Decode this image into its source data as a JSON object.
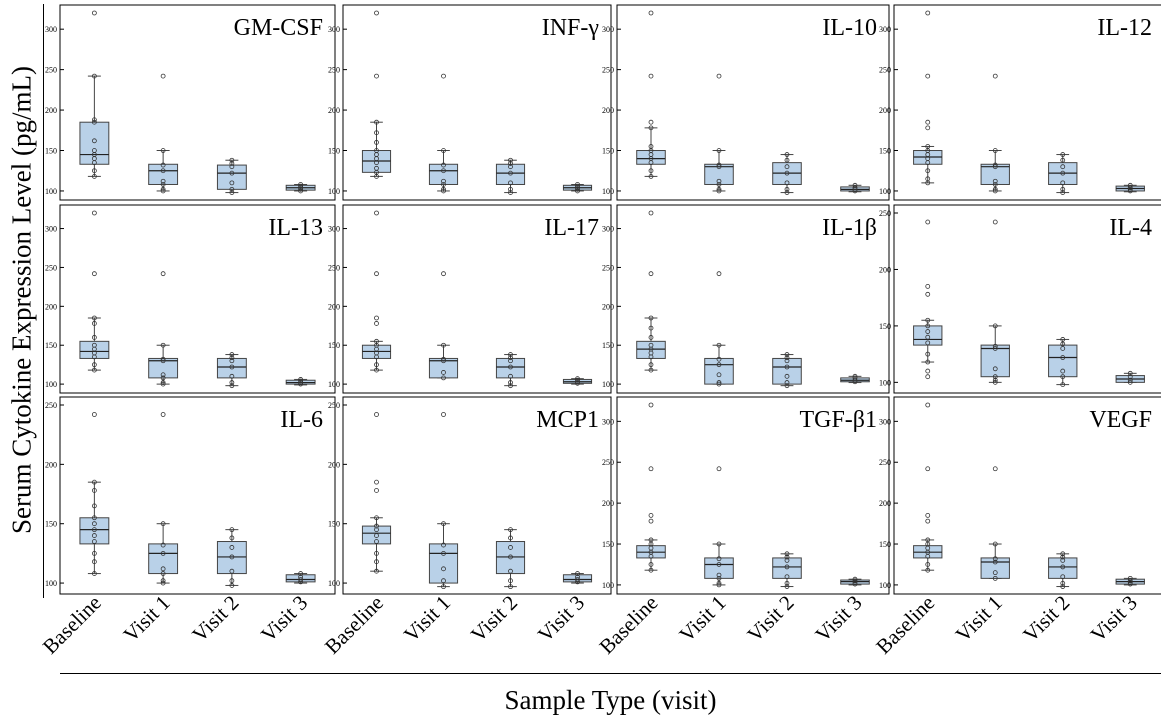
{
  "figure": {
    "y_axis_label": "Serum Cytokine Expression Level (pg/mL)",
    "x_axis_label": "Sample Type (visit)"
  },
  "chart_data": [
    {
      "type": "box",
      "title": "GM-CSF",
      "categories": [
        "Baseline",
        "Visit 1",
        "Visit 2",
        "Visit 3"
      ],
      "ylim": [
        95,
        320
      ],
      "yticks": [
        100,
        150,
        200,
        250,
        300
      ],
      "boxes": [
        {
          "q1": 133,
          "median": 145,
          "q3": 185,
          "whisker_low": 118,
          "whisker_high": 242,
          "points": [
            320,
            242,
            188,
            185,
            162,
            150,
            145,
            140,
            135,
            125,
            118
          ]
        },
        {
          "q1": 108,
          "median": 125,
          "q3": 133,
          "whisker_low": 100,
          "whisker_high": 150,
          "points": [
            242,
            150,
            132,
            125,
            112,
            108,
            102,
            100
          ]
        },
        {
          "q1": 102,
          "median": 122,
          "q3": 132,
          "whisker_low": 98,
          "whisker_high": 138,
          "points": [
            138,
            134,
            130,
            122,
            110,
            102,
            98
          ]
        },
        {
          "q1": 101,
          "median": 104,
          "q3": 107,
          "whisker_low": 100,
          "whisker_high": 108,
          "points": [
            108,
            106,
            104,
            102,
            100
          ]
        }
      ]
    },
    {
      "type": "box",
      "title": "INF-γ",
      "categories": [
        "Baseline",
        "Visit 1",
        "Visit 2",
        "Visit 3"
      ],
      "ylim": [
        95,
        320
      ],
      "yticks": [
        100,
        150,
        200,
        250,
        300
      ],
      "boxes": [
        {
          "q1": 123,
          "median": 137,
          "q3": 150,
          "whisker_low": 118,
          "whisker_high": 185,
          "points": [
            320,
            242,
            185,
            172,
            160,
            150,
            145,
            140,
            135,
            128,
            123,
            118
          ]
        },
        {
          "q1": 108,
          "median": 125,
          "q3": 133,
          "whisker_low": 100,
          "whisker_high": 150,
          "points": [
            242,
            150,
            132,
            125,
            112,
            108,
            102,
            100
          ]
        },
        {
          "q1": 108,
          "median": 122,
          "q3": 133,
          "whisker_low": 98,
          "whisker_high": 138,
          "points": [
            138,
            134,
            130,
            122,
            110,
            102,
            98
          ]
        },
        {
          "q1": 101,
          "median": 104,
          "q3": 107,
          "whisker_low": 100,
          "whisker_high": 108,
          "points": [
            108,
            106,
            104,
            102,
            100
          ]
        }
      ]
    },
    {
      "type": "box",
      "title": "IL-10",
      "categories": [
        "Baseline",
        "Visit 1",
        "Visit 2",
        "Visit 3"
      ],
      "ylim": [
        95,
        320
      ],
      "yticks": [
        100,
        150,
        200,
        250,
        300
      ],
      "boxes": [
        {
          "q1": 133,
          "median": 140,
          "q3": 150,
          "whisker_low": 118,
          "whisker_high": 178,
          "points": [
            320,
            242,
            185,
            178,
            155,
            150,
            145,
            140,
            135,
            125,
            118
          ]
        },
        {
          "q1": 108,
          "median": 130,
          "q3": 133,
          "whisker_low": 100,
          "whisker_high": 150,
          "points": [
            242,
            150,
            132,
            130,
            112,
            108,
            102,
            100
          ]
        },
        {
          "q1": 108,
          "median": 122,
          "q3": 135,
          "whisker_low": 98,
          "whisker_high": 145,
          "points": [
            145,
            138,
            130,
            122,
            110,
            102,
            98
          ]
        },
        {
          "q1": 100,
          "median": 102,
          "q3": 105,
          "whisker_low": 99,
          "whisker_high": 107,
          "points": [
            107,
            104,
            102,
            100
          ]
        }
      ]
    },
    {
      "type": "box",
      "title": "IL-12",
      "categories": [
        "Baseline",
        "Visit 1",
        "Visit 2",
        "Visit 3"
      ],
      "ylim": [
        95,
        320
      ],
      "yticks": [
        100,
        150,
        200,
        250,
        300
      ],
      "boxes": [
        {
          "q1": 133,
          "median": 142,
          "q3": 150,
          "whisker_low": 110,
          "whisker_high": 155,
          "points": [
            320,
            242,
            185,
            178,
            155,
            150,
            145,
            140,
            135,
            125,
            115,
            110
          ]
        },
        {
          "q1": 108,
          "median": 130,
          "q3": 133,
          "whisker_low": 100,
          "whisker_high": 150,
          "points": [
            242,
            150,
            132,
            130,
            112,
            108,
            102,
            100
          ]
        },
        {
          "q1": 108,
          "median": 122,
          "q3": 135,
          "whisker_low": 98,
          "whisker_high": 145,
          "points": [
            145,
            138,
            130,
            122,
            110,
            102,
            98
          ]
        },
        {
          "q1": 100,
          "median": 103,
          "q3": 106,
          "whisker_low": 99,
          "whisker_high": 107,
          "points": [
            107,
            104,
            102,
            100
          ]
        }
      ]
    },
    {
      "type": "box",
      "title": "IL-13",
      "categories": [
        "Baseline",
        "Visit 1",
        "Visit 2",
        "Visit 3"
      ],
      "ylim": [
        95,
        320
      ],
      "yticks": [
        100,
        150,
        200,
        250,
        300
      ],
      "boxes": [
        {
          "q1": 133,
          "median": 142,
          "q3": 155,
          "whisker_low": 118,
          "whisker_high": 185,
          "points": [
            320,
            242,
            185,
            178,
            160,
            150,
            145,
            140,
            135,
            125,
            118
          ]
        },
        {
          "q1": 108,
          "median": 130,
          "q3": 133,
          "whisker_low": 100,
          "whisker_high": 150,
          "points": [
            242,
            150,
            132,
            130,
            112,
            108,
            102,
            100
          ]
        },
        {
          "q1": 108,
          "median": 122,
          "q3": 133,
          "whisker_low": 98,
          "whisker_high": 138,
          "points": [
            138,
            134,
            130,
            122,
            110,
            102,
            98
          ]
        },
        {
          "q1": 100,
          "median": 102,
          "q3": 105,
          "whisker_low": 99,
          "whisker_high": 106,
          "points": [
            106,
            104,
            102,
            100
          ]
        }
      ]
    },
    {
      "type": "box",
      "title": "IL-17",
      "categories": [
        "Baseline",
        "Visit 1",
        "Visit 2",
        "Visit 3"
      ],
      "ylim": [
        95,
        320
      ],
      "yticks": [
        100,
        150,
        200,
        250,
        300
      ],
      "boxes": [
        {
          "q1": 133,
          "median": 142,
          "q3": 150,
          "whisker_low": 118,
          "whisker_high": 155,
          "points": [
            320,
            242,
            185,
            178,
            155,
            150,
            145,
            140,
            135,
            125,
            118
          ]
        },
        {
          "q1": 108,
          "median": 130,
          "q3": 133,
          "whisker_low": 108,
          "whisker_high": 150,
          "points": [
            242,
            150,
            132,
            130,
            115,
            108
          ]
        },
        {
          "q1": 108,
          "median": 122,
          "q3": 133,
          "whisker_low": 98,
          "whisker_high": 138,
          "points": [
            138,
            134,
            130,
            122,
            110,
            102,
            98
          ]
        },
        {
          "q1": 101,
          "median": 103,
          "q3": 106,
          "whisker_low": 100,
          "whisker_high": 107,
          "points": [
            107,
            105,
            103,
            101
          ]
        }
      ]
    },
    {
      "type": "box",
      "title": "IL-1β",
      "categories": [
        "Baseline",
        "Visit 1",
        "Visit 2",
        "Visit 3"
      ],
      "ylim": [
        95,
        320
      ],
      "yticks": [
        100,
        150,
        200,
        250,
        300
      ],
      "boxes": [
        {
          "q1": 133,
          "median": 145,
          "q3": 155,
          "whisker_low": 118,
          "whisker_high": 185,
          "points": [
            320,
            242,
            185,
            172,
            160,
            150,
            145,
            140,
            135,
            125,
            118
          ]
        },
        {
          "q1": 100,
          "median": 125,
          "q3": 133,
          "whisker_low": 100,
          "whisker_high": 150,
          "points": [
            242,
            150,
            132,
            125,
            112,
            102,
            100
          ]
        },
        {
          "q1": 100,
          "median": 122,
          "q3": 133,
          "whisker_low": 98,
          "whisker_high": 138,
          "points": [
            138,
            134,
            130,
            122,
            110,
            102,
            98
          ]
        },
        {
          "q1": 103,
          "median": 105,
          "q3": 108,
          "whisker_low": 102,
          "whisker_high": 110,
          "points": [
            110,
            108,
            105,
            103
          ]
        }
      ]
    },
    {
      "type": "box",
      "title": "IL-4",
      "categories": [
        "Baseline",
        "Visit 1",
        "Visit 2",
        "Visit 3"
      ],
      "ylim": [
        95,
        250
      ],
      "yticks": [
        100,
        150,
        200,
        250
      ],
      "boxes": [
        {
          "q1": 133,
          "median": 138,
          "q3": 150,
          "whisker_low": 118,
          "whisker_high": 155,
          "points": [
            242,
            185,
            178,
            155,
            150,
            145,
            140,
            135,
            125,
            118,
            110,
            105
          ]
        },
        {
          "q1": 105,
          "median": 130,
          "q3": 133,
          "whisker_low": 100,
          "whisker_high": 150,
          "points": [
            242,
            150,
            132,
            130,
            112,
            105,
            102,
            100
          ]
        },
        {
          "q1": 105,
          "median": 122,
          "q3": 133,
          "whisker_low": 98,
          "whisker_high": 138,
          "points": [
            138,
            134,
            130,
            122,
            110,
            105,
            98
          ]
        },
        {
          "q1": 100,
          "median": 103,
          "q3": 106,
          "whisker_low": 100,
          "whisker_high": 108,
          "points": [
            108,
            105,
            102,
            100
          ]
        }
      ]
    },
    {
      "type": "box",
      "title": "IL-6",
      "categories": [
        "Baseline",
        "Visit 1",
        "Visit 2",
        "Visit 3"
      ],
      "ylim": [
        95,
        250
      ],
      "yticks": [
        100,
        150,
        200,
        250
      ],
      "boxes": [
        {
          "q1": 133,
          "median": 145,
          "q3": 155,
          "whisker_low": 108,
          "whisker_high": 185,
          "points": [
            242,
            185,
            178,
            165,
            155,
            150,
            145,
            140,
            135,
            125,
            118,
            108
          ]
        },
        {
          "q1": 108,
          "median": 125,
          "q3": 133,
          "whisker_low": 100,
          "whisker_high": 150,
          "points": [
            242,
            150,
            132,
            125,
            112,
            108,
            102,
            100
          ]
        },
        {
          "q1": 108,
          "median": 122,
          "q3": 135,
          "whisker_low": 98,
          "whisker_high": 145,
          "points": [
            145,
            138,
            130,
            122,
            110,
            102,
            98
          ]
        },
        {
          "q1": 101,
          "median": 103,
          "q3": 107,
          "whisker_low": 100,
          "whisker_high": 108,
          "points": [
            108,
            105,
            103,
            101
          ]
        }
      ]
    },
    {
      "type": "box",
      "title": "MCP1",
      "categories": [
        "Baseline",
        "Visit 1",
        "Visit 2",
        "Visit 3"
      ],
      "ylim": [
        95,
        250
      ],
      "yticks": [
        100,
        150,
        200,
        250
      ],
      "boxes": [
        {
          "q1": 133,
          "median": 142,
          "q3": 148,
          "whisker_low": 110,
          "whisker_high": 155,
          "points": [
            242,
            185,
            178,
            155,
            148,
            145,
            140,
            135,
            125,
            118,
            110
          ]
        },
        {
          "q1": 100,
          "median": 125,
          "q3": 133,
          "whisker_low": 97,
          "whisker_high": 150,
          "points": [
            242,
            150,
            132,
            125,
            112,
            102,
            97
          ]
        },
        {
          "q1": 108,
          "median": 122,
          "q3": 135,
          "whisker_low": 97,
          "whisker_high": 145,
          "points": [
            145,
            138,
            130,
            122,
            110,
            102,
            97
          ]
        },
        {
          "q1": 101,
          "median": 103,
          "q3": 107,
          "whisker_low": 100,
          "whisker_high": 108,
          "points": [
            108,
            105,
            103,
            101
          ]
        }
      ]
    },
    {
      "type": "box",
      "title": "TGF-β1",
      "categories": [
        "Baseline",
        "Visit 1",
        "Visit 2",
        "Visit 3"
      ],
      "ylim": [
        95,
        320
      ],
      "yticks": [
        100,
        150,
        200,
        250,
        300
      ],
      "boxes": [
        {
          "q1": 133,
          "median": 140,
          "q3": 148,
          "whisker_low": 118,
          "whisker_high": 155,
          "points": [
            320,
            242,
            185,
            178,
            155,
            150,
            145,
            140,
            135,
            125,
            118
          ]
        },
        {
          "q1": 108,
          "median": 125,
          "q3": 133,
          "whisker_low": 100,
          "whisker_high": 150,
          "points": [
            242,
            150,
            132,
            125,
            112,
            108,
            102,
            100
          ]
        },
        {
          "q1": 108,
          "median": 122,
          "q3": 133,
          "whisker_low": 98,
          "whisker_high": 138,
          "points": [
            138,
            134,
            130,
            122,
            110,
            102,
            98
          ]
        },
        {
          "q1": 101,
          "median": 104,
          "q3": 106,
          "whisker_low": 100,
          "whisker_high": 107,
          "points": [
            107,
            105,
            103,
            101
          ]
        }
      ]
    },
    {
      "type": "box",
      "title": "VEGF",
      "categories": [
        "Baseline",
        "Visit 1",
        "Visit 2",
        "Visit 3"
      ],
      "ylim": [
        95,
        320
      ],
      "yticks": [
        100,
        150,
        200,
        250,
        300
      ],
      "boxes": [
        {
          "q1": 133,
          "median": 140,
          "q3": 148,
          "whisker_low": 118,
          "whisker_high": 155,
          "points": [
            320,
            242,
            185,
            178,
            155,
            150,
            145,
            140,
            135,
            125,
            118
          ]
        },
        {
          "q1": 108,
          "median": 128,
          "q3": 133,
          "whisker_low": 108,
          "whisker_high": 150,
          "points": [
            242,
            150,
            132,
            128,
            115,
            108
          ]
        },
        {
          "q1": 108,
          "median": 122,
          "q3": 133,
          "whisker_low": 98,
          "whisker_high": 138,
          "points": [
            138,
            134,
            130,
            122,
            110,
            102,
            98
          ]
        },
        {
          "q1": 101,
          "median": 104,
          "q3": 107,
          "whisker_low": 100,
          "whisker_high": 108,
          "points": [
            108,
            105,
            103,
            101
          ]
        }
      ]
    }
  ]
}
